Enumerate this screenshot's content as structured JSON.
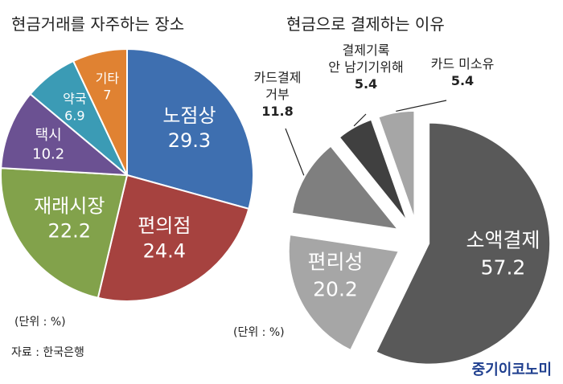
{
  "titles": {
    "left": "현금거래를 자주하는 장소",
    "right": "현금으로 결제하는 이유"
  },
  "notes": {
    "unit_left": "(단위 : %)",
    "unit_right": "(단위 : %)",
    "source": "자료 : 한국은행"
  },
  "brand": "중기이코노미",
  "chart_data": [
    {
      "type": "pie",
      "title": "현금거래를 자주하는 장소",
      "unit": "%",
      "slices": [
        {
          "label": "노점상",
          "value": 29.3,
          "color": "#3e6fb0"
        },
        {
          "label": "편의점",
          "value": 24.4,
          "color": "#a6423f"
        },
        {
          "label": "재래시장",
          "value": 22.2,
          "color": "#82a24b"
        },
        {
          "label": "택시",
          "value": 10.2,
          "color": "#6b5192"
        },
        {
          "label": "약국",
          "value": 6.9,
          "color": "#3b9bb5"
        },
        {
          "label": "기타",
          "value": 7,
          "color": "#e08232"
        }
      ]
    },
    {
      "type": "pie",
      "title": "현금으로 결제하는 이유",
      "unit": "%",
      "slices": [
        {
          "label": "소액결제",
          "value": 57.2,
          "color": "#595959"
        },
        {
          "label": "편리성",
          "value": 20.2,
          "color": "#a6a6a6"
        },
        {
          "label": "카드결제 거부",
          "value": 11.8,
          "color": "#7f7f7f"
        },
        {
          "label": "결제기록 안 남기기위해",
          "value": 5.4,
          "color": "#404040"
        },
        {
          "label": "카드 미소유",
          "value": 5.4,
          "color": "#a6a6a6"
        }
      ]
    }
  ]
}
